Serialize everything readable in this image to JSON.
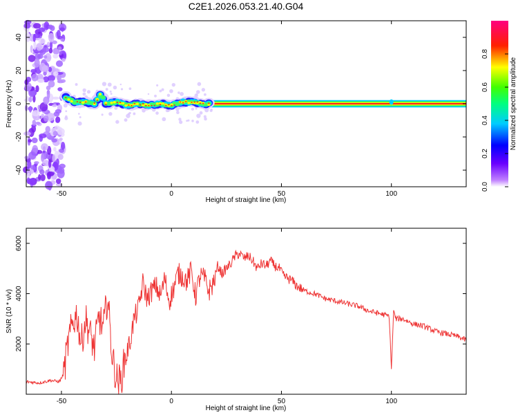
{
  "figure_title": "C2E1.2026.053.21.40.G04",
  "chart_data": [
    {
      "type": "heatmap",
      "title": "",
      "xlabel": "Height of straight line (km)",
      "ylabel": "Frequency (Hz)",
      "xlim": [
        -66,
        134
      ],
      "ylim": [
        -50,
        50
      ],
      "xticks": [
        -50,
        0,
        50,
        100
      ],
      "yticks": [
        -40,
        -20,
        0,
        20,
        40
      ],
      "grid": false,
      "colorbar": {
        "label": "Normalized spectral amplitude",
        "range": [
          0.0,
          1.0
        ],
        "ticks": [
          0.0,
          0.2,
          0.4,
          0.6,
          0.8
        ],
        "colormap": "rainbow (violet-blue-cyan-green-yellow-red-magenta)"
      },
      "features": {
        "noise_region_x": [
          -66,
          -49
        ],
        "signal_track": [
          {
            "x": -48,
            "y": 4
          },
          {
            "x": -44,
            "y": 1
          },
          {
            "x": -40,
            "y": 1
          },
          {
            "x": -35,
            "y": 0
          },
          {
            "x": -32,
            "y": 6
          },
          {
            "x": -30,
            "y": 0
          },
          {
            "x": -25,
            "y": 1
          },
          {
            "x": -20,
            "y": -1
          },
          {
            "x": -15,
            "y": 0
          },
          {
            "x": -10,
            "y": -1
          },
          {
            "x": -5,
            "y": 0
          },
          {
            "x": 0,
            "y": -1
          },
          {
            "x": 5,
            "y": 1
          },
          {
            "x": 10,
            "y": 1
          },
          {
            "x": 15,
            "y": 0
          },
          {
            "x": 134,
            "y": 0
          }
        ]
      }
    },
    {
      "type": "line",
      "title": "",
      "xlabel": "Height of straight line (km)",
      "ylabel": "SNR (10 * v/v)",
      "xlim": [
        -66,
        134
      ],
      "ylim": [
        0,
        6600
      ],
      "xticks": [
        -50,
        0,
        50,
        100
      ],
      "yticks": [
        2000,
        4000,
        6000
      ],
      "grid": false,
      "color": "#ee3333",
      "series": [
        {
          "x": [
            -66,
            -60,
            -55,
            -51,
            -49,
            -47,
            -45,
            -43,
            -41,
            -39,
            -37,
            -35,
            -33,
            -31,
            -29,
            -27,
            -25,
            -23,
            -21,
            -19,
            -17,
            -15,
            -13,
            -11,
            -9,
            -7,
            -5,
            -3,
            -1,
            1,
            3,
            5,
            7,
            9,
            11,
            13,
            15,
            17,
            19,
            21,
            23,
            25,
            27,
            29,
            31,
            33,
            35,
            37,
            39,
            41,
            43,
            45,
            47,
            49,
            51,
            53,
            55,
            57,
            59,
            61,
            65,
            70,
            75,
            80,
            85,
            90,
            95,
            99,
            100,
            101,
            102,
            105,
            110,
            115,
            120,
            125,
            130,
            134
          ],
          "y": [
            500,
            450,
            550,
            500,
            800,
            2000,
            2800,
            3200,
            2000,
            3000,
            2400,
            1800,
            3100,
            2600,
            3900,
            1600,
            600,
            500,
            1500,
            2000,
            3000,
            3400,
            4400,
            3800,
            4100,
            4300,
            3900,
            4600,
            3700,
            4200,
            4800,
            4700,
            4500,
            4900,
            3900,
            4700,
            4600,
            4100,
            4400,
            5100,
            4800,
            5000,
            5200,
            5500,
            5600,
            5400,
            5500,
            5300,
            5000,
            5200,
            5100,
            5300,
            5100,
            5000,
            4700,
            4600,
            4500,
            4300,
            4200,
            4100,
            4000,
            3800,
            3700,
            3600,
            3500,
            3300,
            3200,
            3100,
            1000,
            3300,
            3000,
            3000,
            2800,
            2700,
            2500,
            2400,
            2300,
            2150
          ]
        }
      ]
    }
  ]
}
